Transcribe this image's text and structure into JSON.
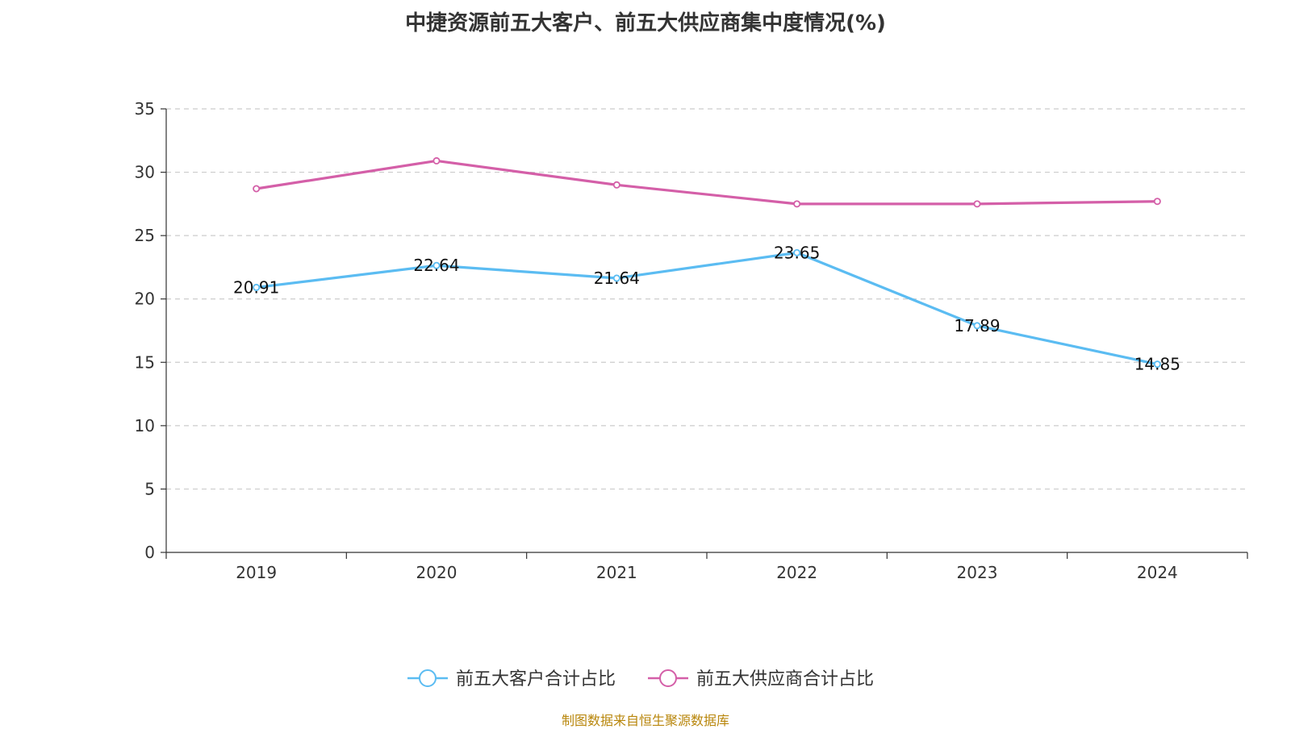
{
  "chart_data": {
    "type": "line",
    "title": "中捷资源前五大客户、前五大供应商集中度情况(%)",
    "categories": [
      "2019",
      "2020",
      "2021",
      "2022",
      "2023",
      "2024"
    ],
    "ylim": [
      0,
      35
    ],
    "yticks": [
      0,
      5,
      10,
      15,
      20,
      25,
      30,
      35
    ],
    "grid": true,
    "legend_position": "bottom",
    "series": [
      {
        "name": "前五大客户合计占比",
        "color": "#5bbcf2",
        "values": [
          20.91,
          22.64,
          21.64,
          23.65,
          17.89,
          14.85
        ],
        "labels": [
          "20.91",
          "22.64",
          "21.64",
          "23.65",
          "17.89",
          "14.85"
        ]
      },
      {
        "name": "前五大供应商合计占比",
        "color": "#d45fa8",
        "values": [
          28.7,
          30.9,
          29.0,
          27.5,
          27.5,
          27.7
        ]
      }
    ]
  },
  "source": "制图数据来自恒生聚源数据库"
}
